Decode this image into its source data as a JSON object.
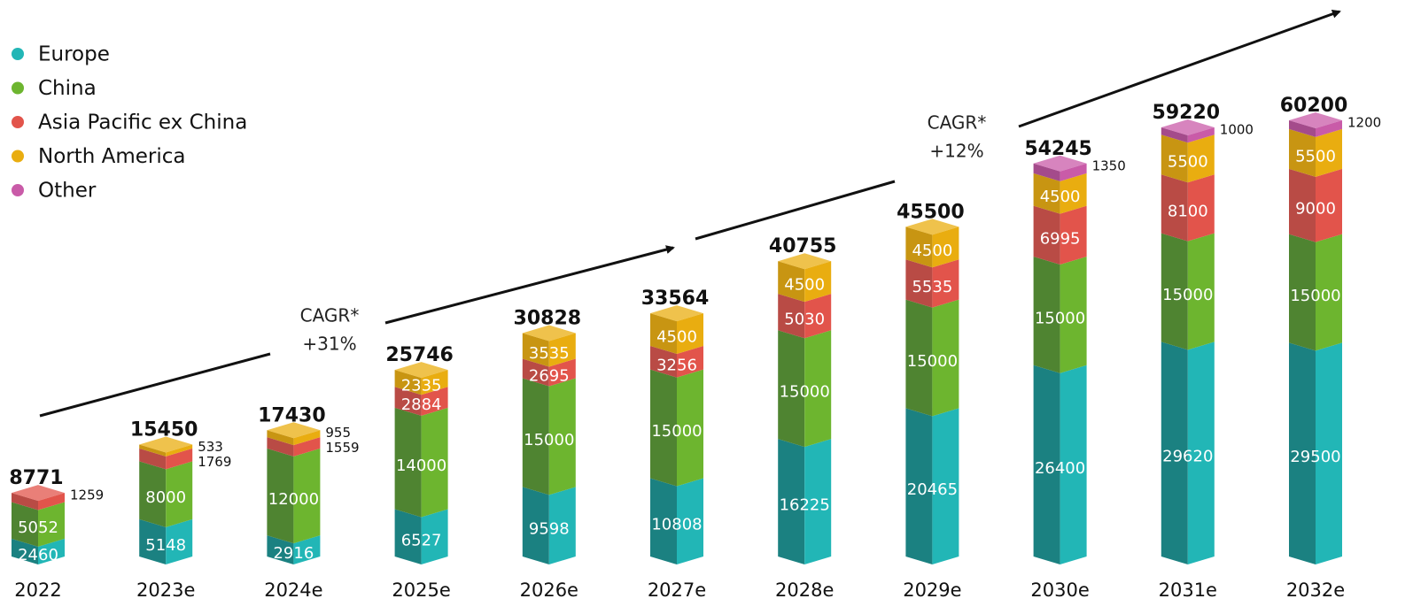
{
  "chart_data": {
    "type": "bar",
    "stacked": true,
    "categories": [
      "2022",
      "2023e",
      "2024e",
      "2025e",
      "2026e",
      "2027e",
      "2028e",
      "2029e",
      "2030e",
      "2031e",
      "2032e"
    ],
    "totals": [
      8771,
      15450,
      17430,
      25746,
      30828,
      33564,
      40755,
      45500,
      54245,
      59220,
      60200
    ],
    "series": [
      {
        "name": "Europe",
        "color": "#22b6b6",
        "dark": "#1b8181",
        "values": [
          2460,
          5148,
          2916,
          6527,
          9598,
          10808,
          16225,
          20465,
          26400,
          29620,
          29500
        ]
      },
      {
        "name": "China",
        "color": "#6db52f",
        "dark": "#4f8431",
        "values": [
          5052,
          8000,
          12000,
          14000,
          15000,
          15000,
          15000,
          15000,
          15000,
          15000,
          15000
        ]
      },
      {
        "name": "Asia Pacific ex China",
        "color": "#e2544b",
        "dark": "#b94b45",
        "values": [
          1259,
          1769,
          1559,
          2884,
          2695,
          3256,
          5030,
          5535,
          6995,
          8100,
          9000
        ]
      },
      {
        "name": "North America",
        "color": "#e9ad10",
        "dark": "#c89512",
        "values": [
          null,
          533,
          955,
          2335,
          3535,
          4500,
          4500,
          4500,
          4500,
          5500,
          5500
        ]
      },
      {
        "name": "Other",
        "color": "#c95ba8",
        "dark": "#a44b8b",
        "values": [
          null,
          null,
          null,
          null,
          null,
          null,
          null,
          null,
          1350,
          1000,
          1200
        ]
      }
    ],
    "annotations": [
      {
        "text": "CAGR*",
        "rate": "+31%"
      },
      {
        "text": "CAGR*",
        "rate": "+12%"
      }
    ]
  }
}
